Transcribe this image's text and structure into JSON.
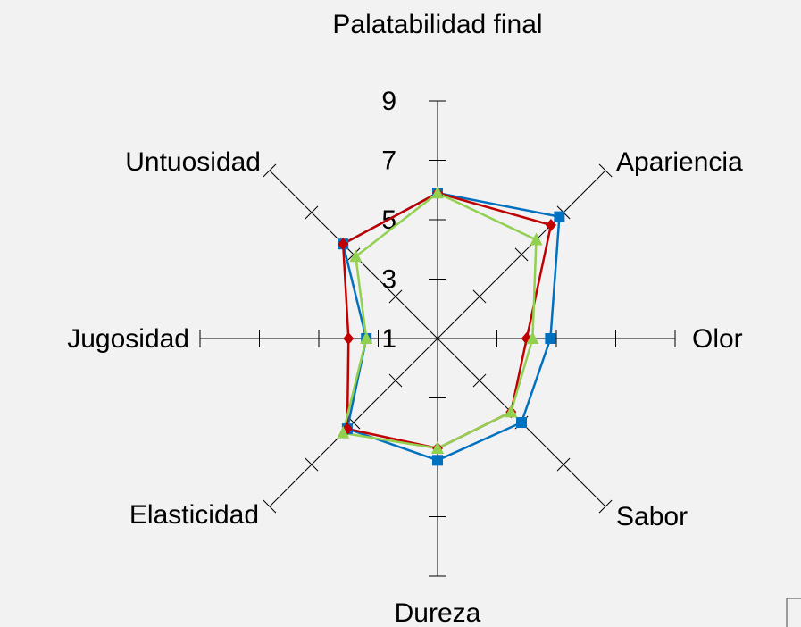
{
  "chart_data": {
    "type": "radar",
    "categories": [
      "Palatabilidad final",
      "Apariencia",
      "Olor",
      "Sabor",
      "Dureza",
      "Elasticidad",
      "Jugosidad",
      "Untuosidad"
    ],
    "series": [
      {
        "color": "#0070c0",
        "marker": "square",
        "values": [
          5.9,
          6.8,
          4.8,
          5.0,
          5.1,
          5.3,
          3.4,
          5.5
        ]
      },
      {
        "color": "#c00000",
        "marker": "diamond",
        "values": [
          5.9,
          6.4,
          4.0,
          4.5,
          4.7,
          5.3,
          4.0,
          5.5
        ]
      },
      {
        "color": "#92d050",
        "marker": "triangle",
        "values": [
          5.9,
          5.7,
          4.2,
          4.5,
          4.7,
          5.5,
          3.4,
          4.9
        ]
      }
    ],
    "rlim": [
      1,
      9
    ],
    "rticks": [
      1,
      3,
      5,
      7,
      9
    ]
  }
}
